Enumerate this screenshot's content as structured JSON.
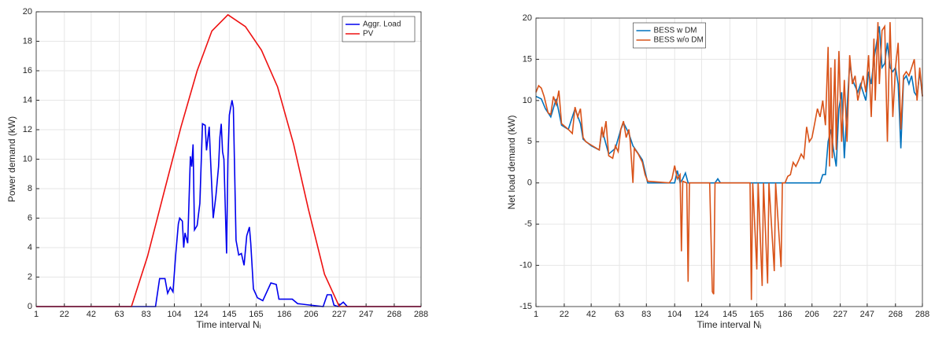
{
  "chart_data": [
    {
      "type": "line",
      "xlabel": "Time interval Nᵢ",
      "ylabel": "Power demand (kW)",
      "xlim": [
        1,
        288
      ],
      "ylim": [
        0,
        20
      ],
      "xticks": [
        1,
        22,
        42,
        63,
        83,
        104,
        124,
        145,
        165,
        186,
        206,
        227,
        247,
        268,
        288
      ],
      "yticks": [
        0,
        2,
        4,
        6,
        8,
        10,
        12,
        14,
        16,
        18,
        20
      ],
      "grid": true,
      "legend": "upper right",
      "series": [
        {
          "name": "Aggr. Load",
          "color": "#0000ee",
          "x": [
            1,
            90,
            93,
            97,
            99,
            101,
            103,
            105,
            107,
            108,
            110,
            111,
            112,
            114,
            116,
            117,
            118,
            119,
            121,
            123,
            125,
            127,
            128,
            130,
            131,
            133,
            135,
            137,
            138,
            139,
            140,
            141,
            143,
            144,
            145,
            147,
            148,
            150,
            152,
            154,
            156,
            158,
            160,
            161,
            163,
            166,
            170,
            176,
            180,
            182,
            186,
            192,
            196,
            215,
            218,
            221,
            223,
            226,
            230,
            233,
            288
          ],
          "values": [
            0,
            0,
            1.9,
            1.9,
            0.9,
            1.3,
            1,
            3.5,
            5.6,
            6,
            5.8,
            4,
            5,
            4.3,
            10.2,
            9.5,
            11,
            5.2,
            5.5,
            7,
            12.4,
            12.3,
            10.6,
            12.2,
            10,
            6,
            7.5,
            9.5,
            11.5,
            12.4,
            10.5,
            10,
            3.6,
            10,
            13,
            14,
            13.5,
            4.5,
            3.5,
            3.6,
            2.8,
            4.8,
            5.4,
            4.3,
            1.2,
            0.6,
            0.4,
            1.6,
            1.5,
            0.5,
            0.5,
            0.5,
            0.2,
            0,
            0.8,
            0.8,
            0.1,
            0,
            0.3,
            0,
            0
          ]
        },
        {
          "name": "PV",
          "color": "#ee1111",
          "x": [
            1,
            72,
            84,
            97,
            109,
            121,
            132,
            144,
            157,
            169,
            181,
            193,
            204,
            216,
            227,
            288
          ],
          "values": [
            0,
            0,
            3.4,
            8,
            12.2,
            16,
            18.7,
            19.8,
            19,
            17.4,
            14.9,
            11,
            6.6,
            2.2,
            0,
            0
          ]
        }
      ]
    },
    {
      "type": "line",
      "xlabel": "Time interval Nᵢ",
      "ylabel": "Net load demand (kW)",
      "xlim": [
        1,
        288
      ],
      "ylim": [
        -15,
        20
      ],
      "xticks": [
        1,
        22,
        42,
        63,
        83,
        104,
        124,
        145,
        165,
        186,
        206,
        227,
        247,
        268,
        288
      ],
      "yticks": [
        -15,
        -10,
        -5,
        0,
        5,
        10,
        15,
        20
      ],
      "grid": true,
      "legend": "upper center",
      "series": [
        {
          "name": "BESS w DM",
          "color": "#0072bd",
          "x": [
            1,
            5,
            8,
            12,
            16,
            20,
            25,
            30,
            34,
            36,
            42,
            48,
            50,
            55,
            60,
            64,
            66,
            70,
            73,
            76,
            80,
            84,
            104,
            106,
            108,
            110,
            112,
            114,
            134,
            136,
            138,
            212,
            214,
            216,
            218,
            220,
            222,
            224,
            226,
            228,
            230,
            232,
            234,
            236,
            240,
            242,
            246,
            248,
            250,
            252,
            254,
            256,
            258,
            260,
            262,
            264,
            266,
            268,
            270,
            272,
            274,
            276,
            278,
            280,
            282,
            284,
            286,
            288
          ],
          "values": [
            10.5,
            10.2,
            9,
            8,
            10.2,
            7,
            6.5,
            9,
            7.2,
            5.3,
            4.5,
            4,
            6.5,
            3.5,
            4.2,
            6.5,
            7.3,
            6,
            4.5,
            3.8,
            2.8,
            0,
            0,
            1.5,
            0,
            0.5,
            1.2,
            0,
            0,
            0.5,
            0,
            0,
            1,
            1,
            5,
            6.5,
            4,
            2,
            9,
            11,
            3,
            9,
            14.5,
            12.5,
            11,
            12,
            10,
            13.5,
            12,
            15,
            17,
            19,
            14,
            14.5,
            17,
            14,
            13.5,
            14,
            12,
            4.2,
            12.5,
            13,
            12,
            13,
            11,
            10.5,
            13.5,
            10.5
          ]
        },
        {
          "name": "BESS w/o DM",
          "color": "#d95319",
          "x": [
            1,
            3,
            5,
            7,
            10,
            12,
            14,
            16,
            18,
            20,
            25,
            28,
            30,
            32,
            34,
            36,
            38,
            42,
            46,
            48,
            50,
            51,
            53,
            55,
            58,
            60,
            62,
            64,
            66,
            68,
            70,
            71,
            73,
            74,
            77,
            80,
            82,
            84,
            100,
            102,
            104,
            106,
            108,
            109,
            110,
            113,
            114,
            115,
            130,
            132,
            133,
            134,
            160,
            161,
            162,
            165,
            166,
            169,
            170,
            173,
            174,
            178,
            179,
            183,
            184,
            186,
            188,
            190,
            192,
            194,
            196,
            198,
            200,
            202,
            204,
            206,
            208,
            210,
            212,
            214,
            216,
            218,
            219,
            220,
            221,
            223,
            224,
            226,
            228,
            230,
            232,
            234,
            236,
            238,
            240,
            242,
            244,
            246,
            248,
            250,
            252,
            253,
            255,
            256,
            258,
            260,
            262,
            264,
            266,
            268,
            270,
            272,
            274,
            276,
            278,
            280,
            282,
            284,
            286,
            288
          ],
          "values": [
            11,
            11.8,
            11.5,
            10.5,
            8.5,
            8.3,
            10.5,
            9.5,
            11.2,
            7.2,
            6.5,
            6,
            9.2,
            8,
            9,
            5.5,
            5,
            4.6,
            4.2,
            4,
            6.8,
            5.5,
            7.5,
            3.3,
            3,
            4.5,
            3.8,
            6.5,
            7.5,
            5.5,
            6.5,
            5,
            0,
            4.2,
            3.5,
            2.5,
            1,
            0.2,
            0,
            0.5,
            2.1,
            0.5,
            1,
            -8.3,
            0.2,
            0,
            -12,
            0,
            0,
            -13.2,
            -13.5,
            0,
            0,
            -14.2,
            0,
            -10.5,
            0,
            -12.5,
            0,
            -12.2,
            0,
            -10.7,
            0,
            -10.2,
            0,
            0,
            0.8,
            1,
            2.5,
            2,
            2.7,
            3.5,
            3,
            6.8,
            5,
            5.5,
            7.2,
            9,
            8,
            10,
            7,
            16.5,
            2,
            14,
            3,
            15,
            4,
            16,
            5,
            12.5,
            5,
            15.5,
            12,
            13,
            10,
            11.5,
            13,
            11,
            15.5,
            8,
            17.5,
            10,
            19.5,
            12,
            18.5,
            19,
            5,
            19.5,
            8,
            14,
            17,
            6.5,
            13,
            13.5,
            13,
            14,
            15,
            10,
            14,
            10.5
          ]
        }
      ]
    }
  ]
}
